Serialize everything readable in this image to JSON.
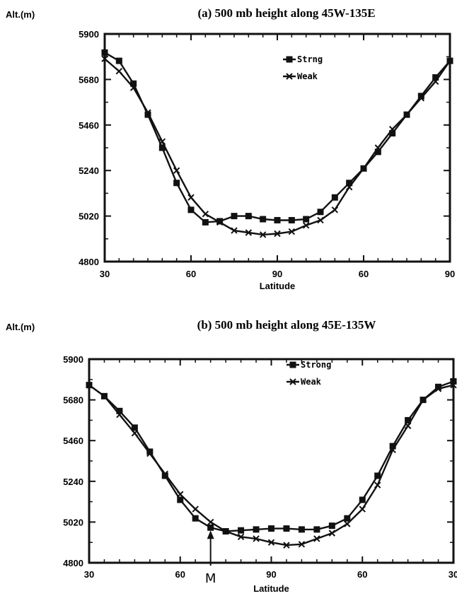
{
  "chart_data": [
    {
      "type": "line",
      "title": "(a) 500 mb height along 45W-135E",
      "ylabel": "Alt.(m)",
      "xlabel": "Latitude",
      "ylim": [
        4800,
        5900
      ],
      "yticks": [
        "5900",
        "5680",
        "5460",
        "5240",
        "5020",
        "4800"
      ],
      "xticks": [
        "30",
        "60",
        "90",
        "60",
        "90"
      ],
      "legend_position": "top-right",
      "series": [
        {
          "name": "Strng",
          "marker": "square",
          "values": [
            5810,
            5770,
            5660,
            5510,
            5350,
            5180,
            5050,
            4990,
            4995,
            5020,
            5020,
            5005,
            5000,
            5000,
            5005,
            5040,
            5110,
            5180,
            5250,
            5330,
            5420,
            5510,
            5600,
            5690,
            5770
          ]
        },
        {
          "name": "Weak",
          "marker": "x",
          "values": [
            5780,
            5720,
            5640,
            5520,
            5380,
            5240,
            5110,
            5030,
            4990,
            4950,
            4940,
            4930,
            4935,
            4945,
            4975,
            5000,
            5050,
            5160,
            5250,
            5350,
            5440,
            5510,
            5590,
            5670,
            5770
          ]
        }
      ]
    },
    {
      "type": "line",
      "title": "(b) 500 mb height along 45E-135W",
      "ylabel": "Alt.(m)",
      "xlabel": "Latitude",
      "ylim": [
        4800,
        5900
      ],
      "yticks": [
        "5900",
        "5680",
        "5460",
        "5240",
        "5020",
        "4800"
      ],
      "xticks": [
        "30",
        "60",
        "90",
        "60",
        "30"
      ],
      "annotation": "M",
      "legend_position": "top-right",
      "series": [
        {
          "name": "Strong",
          "marker": "square",
          "values": [
            5760,
            5700,
            5620,
            5530,
            5400,
            5270,
            5140,
            5040,
            4990,
            4970,
            4975,
            4980,
            4985,
            4985,
            4980,
            4980,
            5000,
            5040,
            5140,
            5270,
            5430,
            5570,
            5680,
            5750,
            5780
          ]
        },
        {
          "name": "Weak",
          "marker": "x",
          "values": [
            5760,
            5700,
            5600,
            5500,
            5390,
            5280,
            5170,
            5090,
            5020,
            4970,
            4940,
            4930,
            4910,
            4895,
            4900,
            4930,
            4960,
            5010,
            5090,
            5220,
            5410,
            5540,
            5680,
            5740,
            5760
          ]
        }
      ]
    }
  ]
}
